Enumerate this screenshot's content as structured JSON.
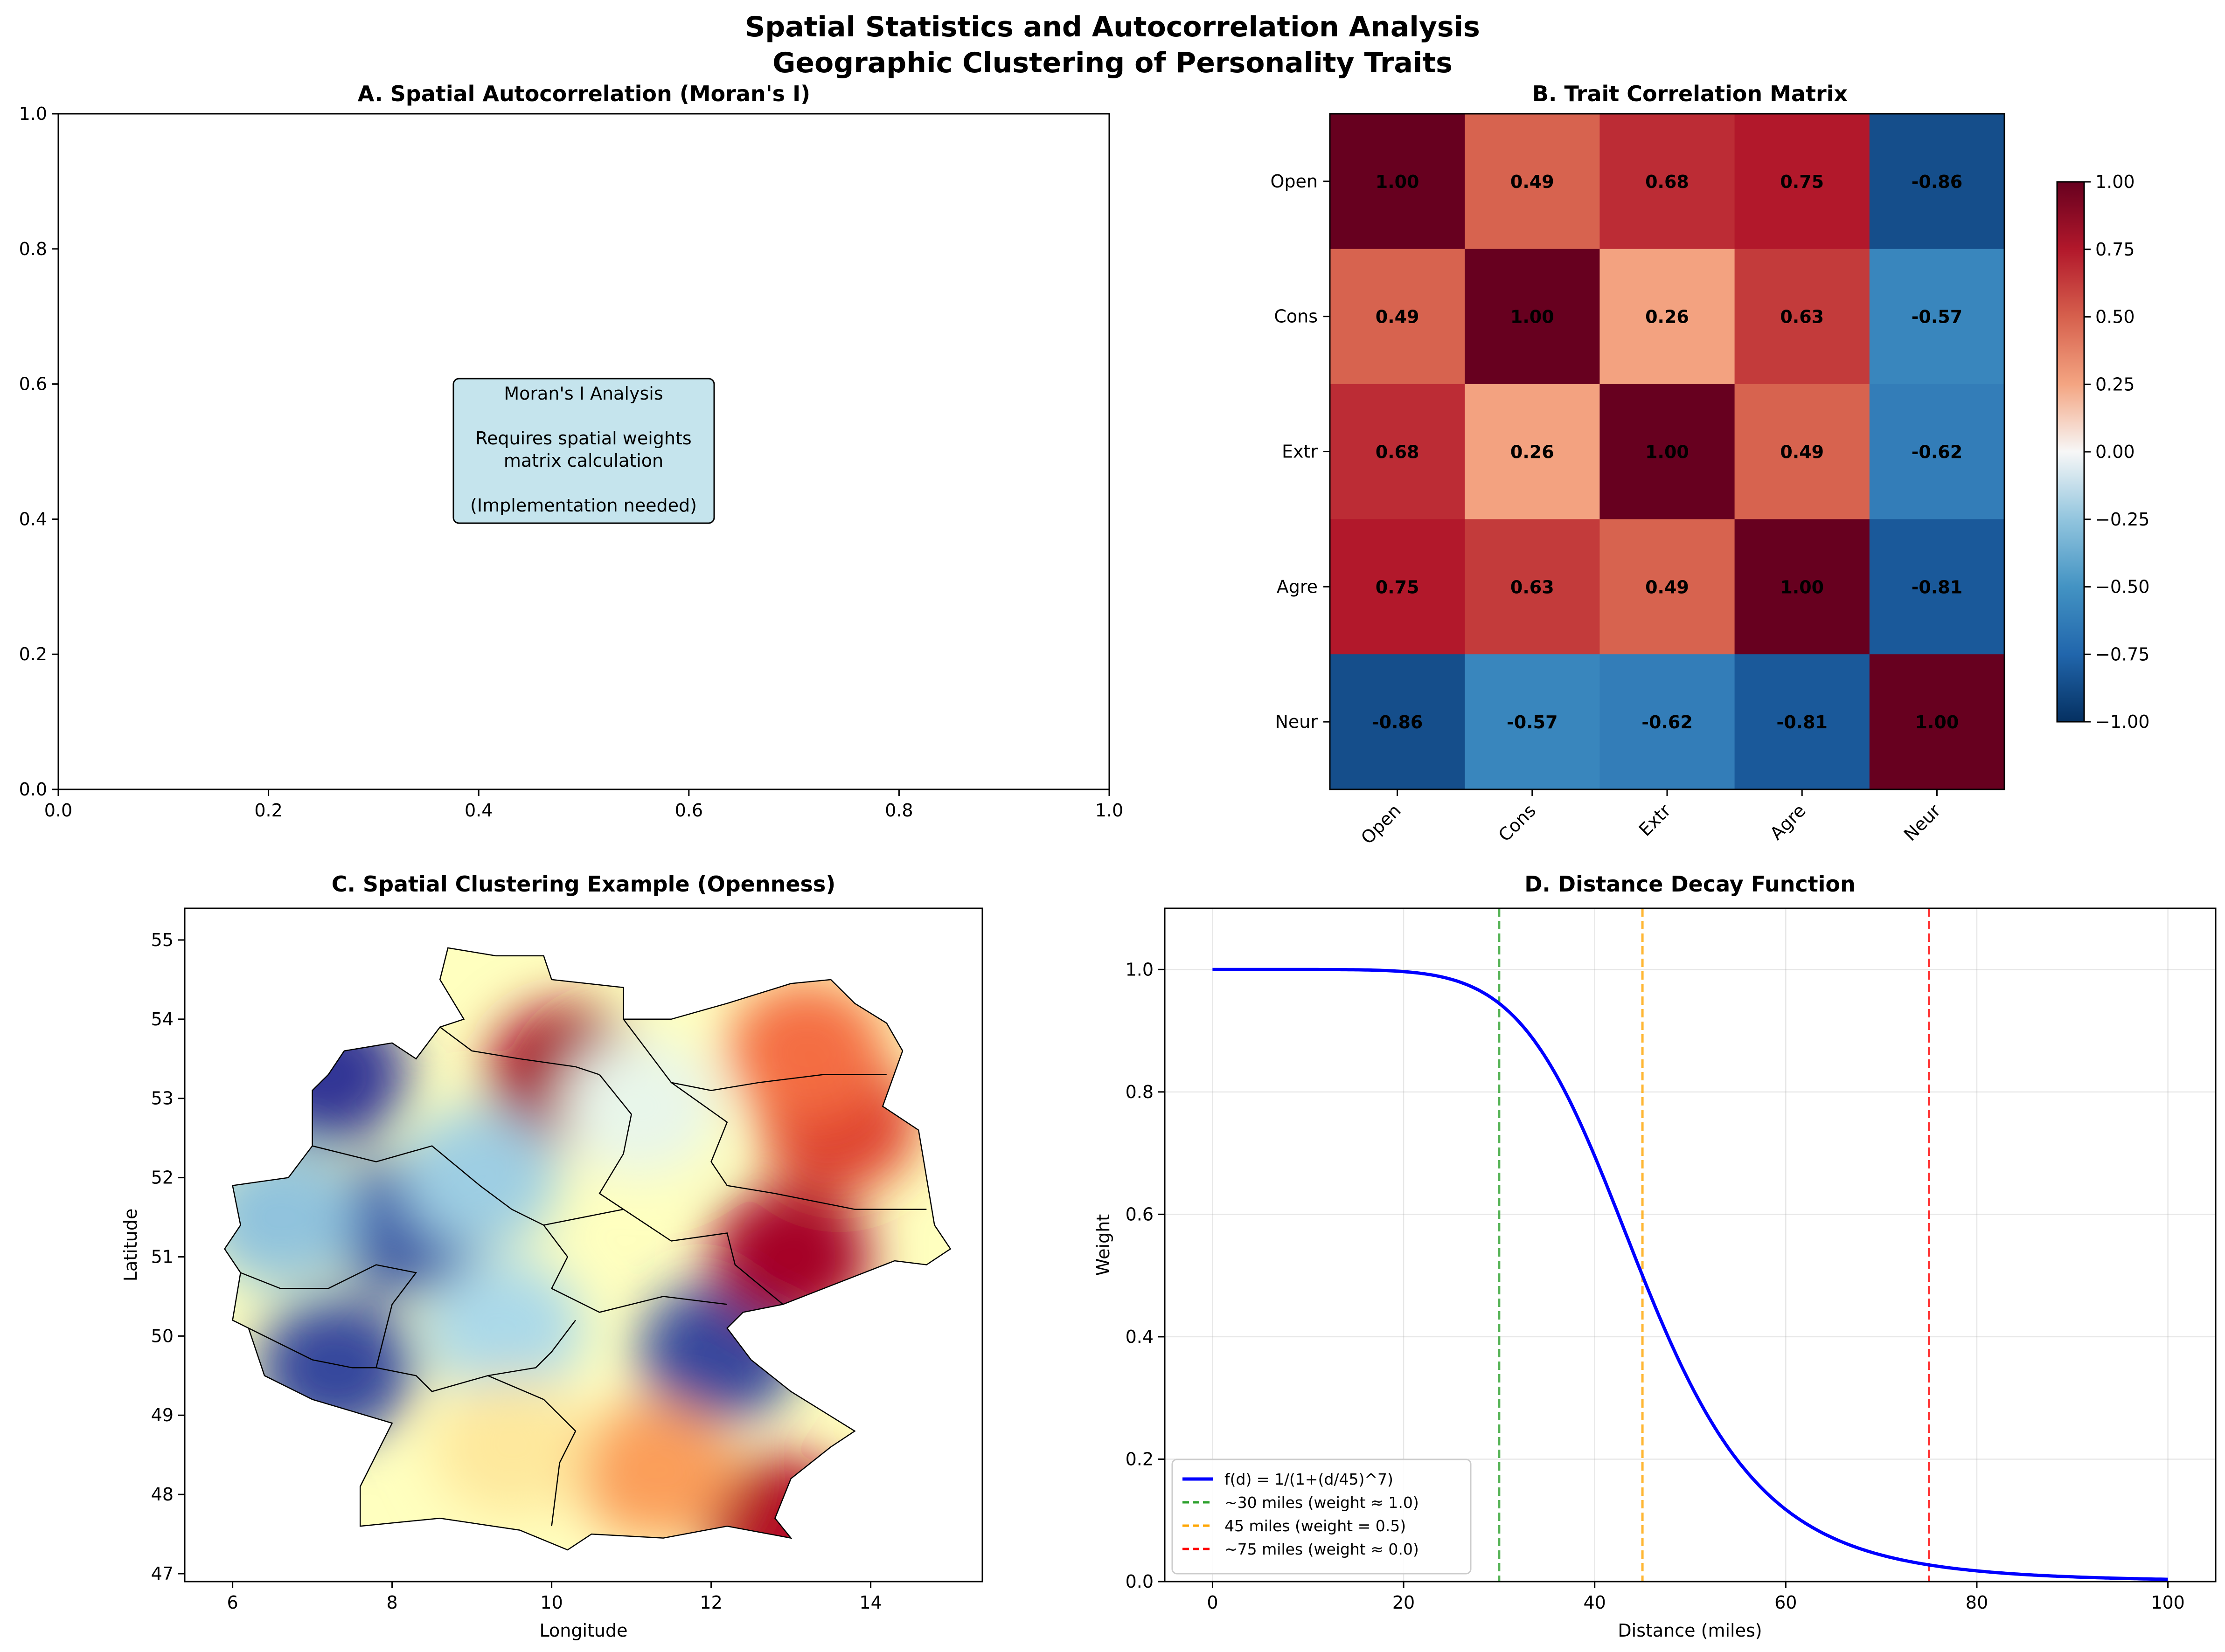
{
  "figure": {
    "suptitle_line1": "Spatial Statistics and Autocorrelation Analysis",
    "suptitle_line2": "Geographic Clustering of Personality Traits"
  },
  "panelA": {
    "title": "A. Spatial Autocorrelation (Moran's I)",
    "box_lines": [
      "Moran's I Analysis",
      "",
      "Requires spatial weights",
      "matrix calculation",
      "",
      "(Implementation needed)"
    ],
    "box_color": "#add8e6",
    "xticks": [
      "0.0",
      "0.2",
      "0.4",
      "0.6",
      "0.8",
      "1.0"
    ],
    "yticks": [
      "0.0",
      "0.2",
      "0.4",
      "0.6",
      "0.8",
      "1.0"
    ]
  },
  "panelC": {
    "title": "C. Spatial Clustering Example (Openness)",
    "xlabel": "Longitude",
    "ylabel": "Latitude"
  },
  "chart_data": [
    {
      "type": "heatmap",
      "title": "B. Trait Correlation Matrix",
      "row_labels": [
        "Open",
        "Cons",
        "Extr",
        "Agre",
        "Neur"
      ],
      "col_labels": [
        "Open",
        "Cons",
        "Extr",
        "Agre",
        "Neur"
      ],
      "values": [
        [
          1.0,
          0.49,
          0.68,
          0.75,
          -0.86
        ],
        [
          0.49,
          1.0,
          0.26,
          0.63,
          -0.57
        ],
        [
          0.68,
          0.26,
          1.0,
          0.49,
          -0.62
        ],
        [
          0.75,
          0.63,
          0.49,
          1.0,
          -0.81
        ],
        [
          -0.86,
          -0.57,
          -0.62,
          -0.81,
          1.0
        ]
      ],
      "colormap": "RdBu_r",
      "vmin": -1,
      "vmax": 1,
      "colorbar_ticks": [
        "1.00",
        "0.75",
        "0.50",
        "0.25",
        "0.00",
        "−0.25",
        "−0.50",
        "−0.75",
        "−1.00"
      ]
    },
    {
      "type": "line",
      "title": "D. Distance Decay Function",
      "xlabel": "Distance (miles)",
      "ylabel": "Weight",
      "xlim": [
        -5,
        105
      ],
      "ylim": [
        0,
        1.1
      ],
      "xticks": [
        0,
        20,
        40,
        60,
        80,
        100
      ],
      "yticks": [
        0.0,
        0.2,
        0.4,
        0.6,
        0.8,
        1.0
      ],
      "grid": true,
      "legend_position": "lower-left",
      "function": {
        "label": "f(d) = 1/(1+(d/45)^7)",
        "scale": 45,
        "exponent": 7,
        "x_range": [
          0,
          100
        ],
        "color": "#0000ff"
      },
      "series": [
        {
          "name": "f(d) = 1/(1+(d/45)^7)",
          "x": [
            0,
            10,
            20,
            25,
            30,
            35,
            40,
            45,
            50,
            55,
            60,
            70,
            80,
            90,
            100
          ],
          "y": [
            1.0,
            0.9999,
            0.9967,
            0.9836,
            0.942,
            0.8513,
            0.6943,
            0.5,
            0.3232,
            0.1933,
            0.1112,
            0.0437,
            0.0177,
            0.0078,
            0.0037
          ]
        }
      ],
      "vlines": [
        {
          "x": 30,
          "label": "~30 miles (weight ≈ 1.0)",
          "color": "#2ca02c"
        },
        {
          "x": 45,
          "label": "45 miles (weight = 0.5)",
          "color": "#ffa500"
        },
        {
          "x": 75,
          "label": "~75 miles (weight ≈ 0.0)",
          "color": "#ff0000"
        }
      ]
    },
    {
      "type": "heatmap",
      "title": "C. Spatial Clustering Example (Openness)",
      "xlabel": "Longitude",
      "ylabel": "Latitude",
      "xlim": [
        5.4,
        15.4
      ],
      "ylim": [
        46.9,
        55.4
      ],
      "xticks": [
        6,
        8,
        10,
        12,
        14
      ],
      "yticks": [
        47,
        48,
        49,
        50,
        51,
        52,
        53,
        54,
        55
      ],
      "colormap": "RdYlBu_r",
      "clusters": [
        {
          "lon": 7.2,
          "lat": 53.3,
          "value": -1.0
        },
        {
          "lon": 8.2,
          "lat": 51.4,
          "value": -0.9
        },
        {
          "lon": 7.3,
          "lat": 49.6,
          "value": -0.95
        },
        {
          "lon": 12.1,
          "lat": 49.8,
          "value": -0.95
        },
        {
          "lon": 10.2,
          "lat": 53.3,
          "value": 1.0
        },
        {
          "lon": 13.0,
          "lat": 51.0,
          "value": 1.0
        },
        {
          "lon": 13.6,
          "lat": 52.7,
          "value": 0.75
        },
        {
          "lon": 12.9,
          "lat": 47.6,
          "value": 0.95
        },
        {
          "lon": 13.2,
          "lat": 53.6,
          "value": 0.6
        },
        {
          "lon": 11.3,
          "lat": 48.3,
          "value": 0.45
        },
        {
          "lon": 9.1,
          "lat": 52.0,
          "value": -0.45
        },
        {
          "lon": 9.4,
          "lat": 50.1,
          "value": -0.4
        },
        {
          "lon": 6.6,
          "lat": 51.5,
          "value": -0.5
        },
        {
          "lon": 11.1,
          "lat": 52.9,
          "value": -0.15
        },
        {
          "lon": 9.5,
          "lat": 48.6,
          "value": 0.15
        }
      ],
      "outline": [
        [
          6.0,
          51.9
        ],
        [
          6.7,
          52.0
        ],
        [
          7.0,
          52.4
        ],
        [
          7.0,
          53.1
        ],
        [
          7.2,
          53.3
        ],
        [
          7.4,
          53.6
        ],
        [
          8.0,
          53.7
        ],
        [
          8.3,
          53.5
        ],
        [
          8.6,
          53.9
        ],
        [
          8.9,
          54.0
        ],
        [
          8.6,
          54.5
        ],
        [
          8.7,
          54.9
        ],
        [
          9.3,
          54.8
        ],
        [
          9.9,
          54.8
        ],
        [
          10.0,
          54.5
        ],
        [
          10.9,
          54.4
        ],
        [
          10.9,
          54.0
        ],
        [
          11.5,
          54.0
        ],
        [
          12.2,
          54.2
        ],
        [
          13.0,
          54.45
        ],
        [
          13.5,
          54.5
        ],
        [
          13.8,
          54.2
        ],
        [
          14.2,
          53.95
        ],
        [
          14.4,
          53.6
        ],
        [
          14.15,
          52.9
        ],
        [
          14.6,
          52.6
        ],
        [
          14.7,
          52.0
        ],
        [
          14.8,
          51.4
        ],
        [
          15.0,
          51.1
        ],
        [
          14.7,
          50.9
        ],
        [
          14.3,
          50.95
        ],
        [
          12.9,
          50.4
        ],
        [
          12.4,
          50.3
        ],
        [
          12.2,
          50.1
        ],
        [
          12.5,
          49.7
        ],
        [
          13.0,
          49.3
        ],
        [
          13.8,
          48.8
        ],
        [
          13.5,
          48.6
        ],
        [
          13.0,
          48.2
        ],
        [
          12.8,
          47.7
        ],
        [
          13.0,
          47.45
        ],
        [
          12.2,
          47.6
        ],
        [
          11.4,
          47.45
        ],
        [
          10.5,
          47.5
        ],
        [
          10.2,
          47.3
        ],
        [
          9.6,
          47.55
        ],
        [
          8.6,
          47.7
        ],
        [
          7.6,
          47.6
        ],
        [
          7.6,
          48.1
        ],
        [
          8.0,
          48.9
        ],
        [
          7.0,
          49.2
        ],
        [
          6.4,
          49.5
        ],
        [
          6.2,
          50.1
        ],
        [
          6.0,
          50.2
        ],
        [
          6.1,
          50.8
        ],
        [
          5.9,
          51.1
        ],
        [
          6.1,
          51.4
        ],
        [
          6.0,
          51.9
        ]
      ],
      "borders": [
        [
          [
            8.6,
            53.9
          ],
          [
            9.0,
            53.6
          ],
          [
            9.6,
            53.5
          ],
          [
            10.3,
            53.4
          ],
          [
            10.6,
            53.3
          ]
        ],
        [
          [
            10.9,
            54.0
          ],
          [
            11.2,
            53.6
          ],
          [
            11.5,
            53.2
          ],
          [
            12.0,
            53.1
          ],
          [
            12.6,
            53.2
          ],
          [
            13.4,
            53.3
          ],
          [
            14.2,
            53.3
          ]
        ],
        [
          [
            10.6,
            53.3
          ],
          [
            11.0,
            52.8
          ],
          [
            10.9,
            52.3
          ],
          [
            10.6,
            51.8
          ],
          [
            10.9,
            51.6
          ]
        ],
        [
          [
            7.0,
            52.4
          ],
          [
            7.8,
            52.2
          ],
          [
            8.5,
            52.4
          ],
          [
            9.1,
            51.9
          ],
          [
            9.5,
            51.6
          ],
          [
            9.9,
            51.4
          ],
          [
            10.9,
            51.6
          ]
        ],
        [
          [
            11.5,
            53.2
          ],
          [
            12.2,
            52.7
          ],
          [
            12.0,
            52.2
          ],
          [
            12.2,
            51.9
          ],
          [
            12.8,
            51.8
          ],
          [
            13.8,
            51.6
          ],
          [
            14.7,
            51.6
          ]
        ],
        [
          [
            10.9,
            51.6
          ],
          [
            11.5,
            51.2
          ],
          [
            12.2,
            51.3
          ],
          [
            12.3,
            50.9
          ],
          [
            12.9,
            50.4
          ]
        ],
        [
          [
            9.9,
            51.4
          ],
          [
            10.2,
            51.0
          ],
          [
            10.0,
            50.6
          ],
          [
            10.6,
            50.3
          ],
          [
            11.4,
            50.5
          ],
          [
            12.2,
            50.4
          ]
        ],
        [
          [
            6.1,
            50.8
          ],
          [
            6.6,
            50.6
          ],
          [
            7.2,
            50.6
          ],
          [
            7.8,
            50.9
          ],
          [
            8.3,
            50.8
          ],
          [
            8.0,
            50.4
          ],
          [
            7.8,
            49.6
          ],
          [
            8.3,
            49.5
          ],
          [
            8.5,
            49.3
          ],
          [
            9.2,
            49.5
          ],
          [
            9.8,
            49.6
          ],
          [
            10.0,
            49.8
          ],
          [
            10.3,
            50.2
          ]
        ],
        [
          [
            9.2,
            49.5
          ],
          [
            9.9,
            49.2
          ],
          [
            10.3,
            48.8
          ],
          [
            10.1,
            48.4
          ],
          [
            10.0,
            47.6
          ]
        ],
        [
          [
            6.2,
            50.1
          ],
          [
            6.6,
            49.9
          ],
          [
            7.0,
            49.7
          ],
          [
            7.5,
            49.6
          ],
          [
            7.8,
            49.6
          ]
        ]
      ]
    }
  ]
}
